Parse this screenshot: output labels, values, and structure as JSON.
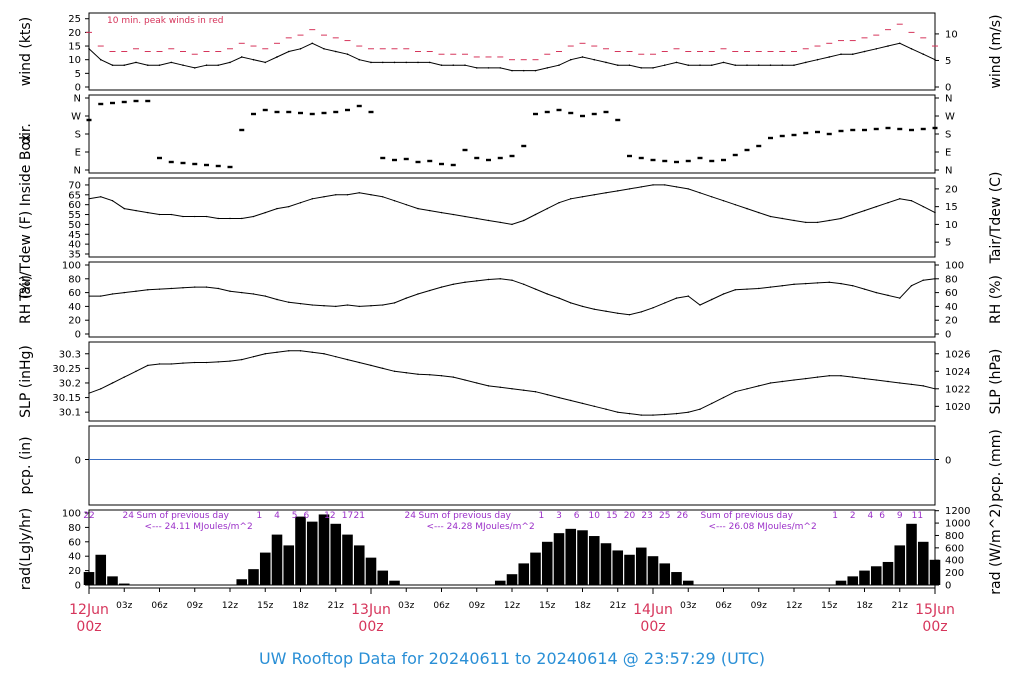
{
  "title": "UW Rooftop Data for 20240611  to  20240614 @ 23:57:29  (UTC)",
  "time_axis": {
    "hour_labels": [
      "03z",
      "06z",
      "09z",
      "12z",
      "15z",
      "18z",
      "21z",
      "03z",
      "06z",
      "09z",
      "12z",
      "15z",
      "18z",
      "21z",
      "03z",
      "06z",
      "09z",
      "12z",
      "15z",
      "18z",
      "21z"
    ],
    "hour_values": [
      3,
      6,
      9,
      12,
      15,
      18,
      21,
      27,
      30,
      33,
      36,
      39,
      42,
      45,
      51,
      54,
      57,
      60,
      63,
      66,
      69
    ],
    "day_labels": [
      {
        "date": "12Jun",
        "time": "00z",
        "t": 0
      },
      {
        "date": "13Jun",
        "time": "00z",
        "t": 24
      },
      {
        "date": "14Jun",
        "time": "00z",
        "t": 48
      },
      {
        "date": "15Jun",
        "time": "00z",
        "t": 72
      }
    ],
    "range_hours": [
      0,
      72
    ]
  },
  "colors": {
    "line": "#000000",
    "peak": "#d6355b",
    "precip": "#3a6fc4",
    "rad_text": "#9b30c8",
    "title": "#2a8fd6",
    "day_label": "#d6355b"
  },
  "chart_data": [
    {
      "type": "line",
      "name": "wind",
      "ylabel": "wind (kts)",
      "ylabel_right": "wind (m/s)",
      "annotation": "10 min. peak winds in red",
      "ylim": [
        0,
        26
      ],
      "yticks": [
        0,
        5,
        10,
        15,
        20,
        25
      ],
      "yticks_right": [
        {
          "label": "0",
          "v": 0
        },
        {
          "label": "5",
          "v": 9.72
        },
        {
          "label": "10",
          "v": 19.44
        }
      ],
      "x": [
        0,
        1,
        2,
        3,
        4,
        5,
        6,
        7,
        8,
        9,
        10,
        11,
        12,
        13,
        14,
        15,
        16,
        17,
        18,
        19,
        20,
        21,
        22,
        23,
        24,
        25,
        26,
        27,
        28,
        29,
        30,
        31,
        32,
        33,
        34,
        35,
        36,
        37,
        38,
        39,
        40,
        41,
        42,
        43,
        44,
        45,
        46,
        47,
        48,
        49,
        50,
        51,
        52,
        53,
        54,
        55,
        56,
        57,
        58,
        59,
        60,
        61,
        62,
        63,
        64,
        65,
        66,
        67,
        68,
        69,
        70,
        71,
        72
      ],
      "series": [
        {
          "role": "wind",
          "values": [
            14,
            10,
            8,
            8,
            9,
            8,
            8,
            9,
            8,
            7,
            8,
            8,
            9,
            11,
            10,
            9,
            11,
            13,
            14,
            16,
            14,
            13,
            12,
            10,
            9,
            9,
            9,
            9,
            9,
            9,
            8,
            8,
            8,
            7,
            7,
            7,
            6,
            6,
            6,
            7,
            8,
            10,
            11,
            10,
            9,
            8,
            8,
            7,
            7,
            8,
            9,
            8,
            8,
            8,
            9,
            8,
            8,
            8,
            8,
            8,
            8,
            9,
            10,
            11,
            12,
            12,
            13,
            14,
            15,
            16,
            14,
            12,
            10
          ]
        },
        {
          "role": "peak",
          "values": [
            20,
            15,
            13,
            13,
            14,
            13,
            13,
            14,
            13,
            12,
            13,
            13,
            14,
            16,
            15,
            14,
            16,
            18,
            19,
            21,
            19,
            18,
            17,
            15,
            14,
            14,
            14,
            14,
            13,
            13,
            12,
            12,
            12,
            11,
            11,
            11,
            10,
            10,
            10,
            12,
            13,
            15,
            16,
            15,
            14,
            13,
            13,
            12,
            12,
            13,
            14,
            13,
            13,
            13,
            14,
            13,
            13,
            13,
            13,
            13,
            13,
            14,
            15,
            16,
            17,
            17,
            18,
            19,
            21,
            23,
            20,
            18,
            15
          ]
        }
      ]
    },
    {
      "type": "scatter",
      "name": "wind direction",
      "ylabel": "dir.",
      "ylim": [
        0,
        360
      ],
      "ytick_labels": [
        {
          "label": "N",
          "v": 0
        },
        {
          "label": "E",
          "v": 90
        },
        {
          "label": "S",
          "v": 180
        },
        {
          "label": "W",
          "v": 270
        },
        {
          "label": "N",
          "v": 360
        }
      ],
      "x": [
        0,
        1,
        2,
        3,
        4,
        5,
        6,
        7,
        8,
        9,
        10,
        11,
        12,
        13,
        14,
        15,
        16,
        17,
        18,
        19,
        20,
        21,
        22,
        23,
        24,
        25,
        26,
        27,
        28,
        29,
        30,
        31,
        32,
        33,
        34,
        35,
        36,
        37,
        38,
        39,
        40,
        41,
        42,
        43,
        44,
        45,
        46,
        47,
        48,
        49,
        50,
        51,
        52,
        53,
        54,
        55,
        56,
        57,
        58,
        59,
        60,
        61,
        62,
        63,
        64,
        65,
        66,
        67,
        68,
        69,
        70,
        71,
        72
      ],
      "values": [
        250,
        330,
        335,
        340,
        345,
        345,
        60,
        40,
        35,
        30,
        25,
        20,
        15,
        200,
        280,
        300,
        290,
        290,
        285,
        280,
        285,
        290,
        300,
        320,
        290,
        60,
        50,
        55,
        40,
        45,
        30,
        25,
        100,
        60,
        50,
        60,
        70,
        120,
        280,
        290,
        300,
        285,
        270,
        280,
        290,
        250,
        70,
        60,
        50,
        45,
        40,
        45,
        60,
        45,
        50,
        75,
        100,
        120,
        160,
        170,
        175,
        185,
        190,
        180,
        195,
        200,
        200,
        205,
        210,
        205,
        200,
        205,
        210
      ]
    },
    {
      "type": "line",
      "name": "inside air temperature",
      "ylabel": "Tair/Tdew (F) Inside Box",
      "ylabel_right": "Tair/Tdew (C)",
      "ylim": [
        35,
        72
      ],
      "yticks": [
        35,
        40,
        45,
        50,
        55,
        60,
        65,
        70
      ],
      "yticks_right": [
        {
          "label": "5",
          "v": 41
        },
        {
          "label": "10",
          "v": 50
        },
        {
          "label": "15",
          "v": 59
        },
        {
          "label": "20",
          "v": 68
        }
      ],
      "x": [
        0,
        1,
        2,
        3,
        4,
        5,
        6,
        7,
        8,
        9,
        10,
        11,
        12,
        13,
        14,
        15,
        16,
        17,
        18,
        19,
        20,
        21,
        22,
        23,
        24,
        25,
        26,
        27,
        28,
        29,
        30,
        31,
        32,
        33,
        34,
        35,
        36,
        37,
        38,
        39,
        40,
        41,
        42,
        43,
        44,
        45,
        46,
        47,
        48,
        49,
        50,
        51,
        52,
        53,
        54,
        55,
        56,
        57,
        58,
        59,
        60,
        61,
        62,
        63,
        64,
        65,
        66,
        67,
        68,
        69,
        70,
        71,
        72
      ],
      "values": [
        63,
        64,
        62,
        58,
        57,
        56,
        55,
        55,
        54,
        54,
        54,
        53,
        53,
        53,
        54,
        56,
        58,
        59,
        61,
        63,
        64,
        65,
        65,
        66,
        65,
        64,
        62,
        60,
        58,
        57,
        56,
        55,
        54,
        53,
        52,
        51,
        50,
        52,
        55,
        58,
        61,
        63,
        64,
        65,
        66,
        67,
        68,
        69,
        70,
        70,
        69,
        68,
        66,
        64,
        62,
        60,
        58,
        56,
        54,
        53,
        52,
        51,
        51,
        52,
        53,
        55,
        57,
        59,
        61,
        63,
        62,
        59,
        56
      ]
    },
    {
      "type": "line",
      "name": "relative humidity",
      "ylabel": "RH (%)",
      "ylabel_right": "RH (%)",
      "ylim": [
        0,
        100
      ],
      "yticks": [
        0,
        20,
        40,
        60,
        80,
        100
      ],
      "x": [
        0,
        1,
        2,
        3,
        4,
        5,
        6,
        7,
        8,
        9,
        10,
        11,
        12,
        13,
        14,
        15,
        16,
        17,
        18,
        19,
        20,
        21,
        22,
        23,
        24,
        25,
        26,
        27,
        28,
        29,
        30,
        31,
        32,
        33,
        34,
        35,
        36,
        37,
        38,
        39,
        40,
        41,
        42,
        43,
        44,
        45,
        46,
        47,
        48,
        49,
        50,
        51,
        52,
        53,
        54,
        55,
        56,
        57,
        58,
        59,
        60,
        61,
        62,
        63,
        64,
        65,
        66,
        67,
        68,
        69,
        70,
        71,
        72
      ],
      "values": [
        55,
        55,
        58,
        60,
        62,
        64,
        65,
        66,
        67,
        68,
        68,
        66,
        62,
        60,
        58,
        55,
        50,
        46,
        44,
        42,
        41,
        40,
        42,
        40,
        41,
        42,
        45,
        52,
        58,
        63,
        68,
        72,
        75,
        77,
        79,
        80,
        78,
        72,
        65,
        58,
        52,
        45,
        40,
        36,
        33,
        30,
        28,
        32,
        38,
        45,
        52,
        55,
        42,
        50,
        58,
        64,
        65,
        66,
        68,
        70,
        72,
        73,
        74,
        75,
        73,
        70,
        65,
        60,
        56,
        52,
        70,
        78,
        80
      ]
    },
    {
      "type": "line",
      "name": "sea level pressure",
      "ylabel": "SLP (inHg)",
      "ylabel_right": "SLP (hPa)",
      "ylim": [
        30.08,
        30.33
      ],
      "yticks": [
        30.1,
        30.15,
        30.2,
        30.25,
        30.3
      ],
      "yticks_right": [
        {
          "label": "1020",
          "v": 30.12
        },
        {
          "label": "1022",
          "v": 30.18
        },
        {
          "label": "1024",
          "v": 30.24
        },
        {
          "label": "1026",
          "v": 30.3
        }
      ],
      "x": [
        0,
        1,
        2,
        3,
        4,
        5,
        6,
        7,
        8,
        9,
        10,
        11,
        12,
        13,
        14,
        15,
        16,
        17,
        18,
        19,
        20,
        21,
        22,
        23,
        24,
        25,
        26,
        27,
        28,
        29,
        30,
        31,
        32,
        33,
        34,
        35,
        36,
        37,
        38,
        39,
        40,
        41,
        42,
        43,
        44,
        45,
        46,
        47,
        48,
        49,
        50,
        51,
        52,
        53,
        54,
        55,
        56,
        57,
        58,
        59,
        60,
        61,
        62,
        63,
        64,
        65,
        66,
        67,
        68,
        69,
        70,
        71,
        72
      ],
      "values": [
        30.165,
        30.18,
        30.2,
        30.22,
        30.24,
        30.26,
        30.265,
        30.265,
        30.268,
        30.27,
        30.27,
        30.272,
        30.275,
        30.28,
        30.29,
        30.3,
        30.305,
        30.31,
        30.31,
        30.305,
        30.3,
        30.29,
        30.28,
        30.27,
        30.26,
        30.25,
        30.24,
        30.235,
        30.23,
        30.228,
        30.225,
        30.22,
        30.21,
        30.2,
        30.19,
        30.185,
        30.18,
        30.175,
        30.17,
        30.16,
        30.15,
        30.14,
        30.13,
        30.12,
        30.11,
        30.1,
        30.095,
        30.09,
        30.09,
        30.092,
        30.095,
        30.1,
        30.11,
        30.13,
        30.15,
        30.17,
        30.18,
        30.19,
        30.2,
        30.205,
        30.21,
        30.215,
        30.22,
        30.225,
        30.225,
        30.22,
        30.215,
        30.21,
        30.205,
        30.2,
        30.195,
        30.19,
        30.18
      ]
    },
    {
      "type": "line",
      "name": "precipitation",
      "ylabel": "pcp. (in)",
      "ylabel_right": "pcp. (mm)",
      "ytick_label": "0",
      "ytick_label_right": "0",
      "values": [
        0
      ]
    },
    {
      "type": "area",
      "name": "solar radiation",
      "ylabel": "rad(Lgly/hr)",
      "ylabel_right": "rad (W/m^2)",
      "ylim": [
        0,
        100
      ],
      "yticks": [
        0,
        20,
        40,
        60,
        80,
        100
      ],
      "yticks_right": [
        {
          "label": "0",
          "v": 0
        },
        {
          "label": "200",
          "v": 17.2
        },
        {
          "label": "400",
          "v": 34.4
        },
        {
          "label": "600",
          "v": 51.6
        },
        {
          "label": "800",
          "v": 68.8
        },
        {
          "label": "1000",
          "v": 86
        },
        {
          "label": "1200",
          "v": 103.2
        }
      ],
      "daily_sums": [
        {
          "prefix": "24",
          "label": "Sum of previous day",
          "value": "<--- 24.11 MJoules/m^2",
          "t": 2
        },
        {
          "prefix": "24",
          "label": "Sum of previous day",
          "value": "<--- 24.28 MJoules/m^2",
          "t": 26
        },
        {
          "prefix": "",
          "label": "Sum of previous day",
          "value": "<--- 26.08 MJoules/m^2",
          "t": 50
        }
      ],
      "hour_marks": [
        {
          "label": "22",
          "t": 0
        },
        {
          "label": "1",
          "t": 14.5
        },
        {
          "label": "4",
          "t": 16
        },
        {
          "label": "5",
          "t": 17.5
        },
        {
          "label": "6",
          "t": 18.5
        },
        {
          "label": "12",
          "t": 20.5
        },
        {
          "label": "17",
          "t": 22
        },
        {
          "label": "21",
          "t": 23
        },
        {
          "label": "1",
          "t": 38.5
        },
        {
          "label": "3",
          "t": 40
        },
        {
          "label": "6",
          "t": 41.5
        },
        {
          "label": "10",
          "t": 43
        },
        {
          "label": "15",
          "t": 44.5
        },
        {
          "label": "20",
          "t": 46
        },
        {
          "label": "23",
          "t": 47.5
        },
        {
          "label": "25",
          "t": 49
        },
        {
          "label": "26",
          "t": 50.5
        },
        {
          "label": "1",
          "t": 63.5
        },
        {
          "label": "2",
          "t": 65
        },
        {
          "label": "4",
          "t": 66.5
        },
        {
          "label": "6",
          "t": 67.5
        },
        {
          "label": "9",
          "t": 69
        },
        {
          "label": "11",
          "t": 70.5
        }
      ],
      "x": [
        0,
        1,
        2,
        3,
        4,
        5,
        6,
        7,
        8,
        9,
        10,
        11,
        12,
        13,
        14,
        15,
        16,
        17,
        18,
        19,
        20,
        21,
        22,
        23,
        24,
        25,
        26,
        27,
        28,
        29,
        30,
        31,
        32,
        33,
        34,
        35,
        36,
        37,
        38,
        39,
        40,
        41,
        42,
        43,
        44,
        45,
        46,
        47,
        48,
        49,
        50,
        51,
        52,
        53,
        54,
        55,
        56,
        57,
        58,
        59,
        60,
        61,
        62,
        63,
        64,
        65,
        66,
        67,
        68,
        69,
        70,
        71,
        72
      ],
      "values": [
        18,
        42,
        12,
        2,
        0,
        0,
        0,
        0,
        0,
        0,
        0,
        0,
        0,
        8,
        22,
        45,
        70,
        55,
        95,
        88,
        98,
        85,
        70,
        55,
        38,
        20,
        6,
        0,
        0,
        0,
        0,
        0,
        0,
        0,
        0,
        6,
        15,
        30,
        45,
        60,
        72,
        78,
        76,
        68,
        58,
        48,
        42,
        52,
        40,
        30,
        18,
        6,
        0,
        0,
        0,
        0,
        0,
        0,
        0,
        0,
        0,
        0,
        0,
        0,
        6,
        12,
        20,
        26,
        32,
        55,
        85,
        60,
        35
      ]
    }
  ]
}
